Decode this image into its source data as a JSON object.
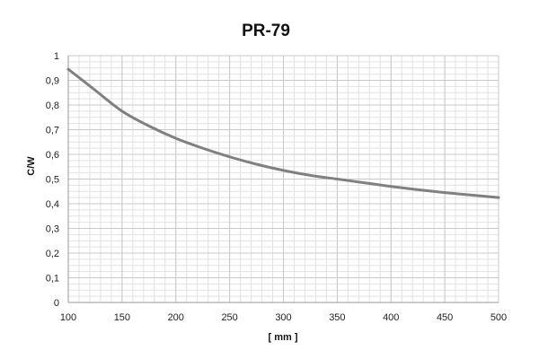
{
  "chart_data": {
    "type": "line",
    "title": "PR-79",
    "xlabel": "[ mm ]",
    "ylabel": "C/W",
    "xlim": [
      100,
      500
    ],
    "ylim": [
      0,
      1
    ],
    "x_ticks": [
      "100",
      "150",
      "200",
      "250",
      "300",
      "350",
      "400",
      "450",
      "500"
    ],
    "y_ticks": [
      "0",
      "0,1",
      "0,2",
      "0,3",
      "0,4",
      "0,5",
      "0,6",
      "0,7",
      "0,8",
      "0,9",
      "1"
    ],
    "grid": true,
    "series": [
      {
        "color": "#808080",
        "x": [
          100,
          125,
          150,
          175,
          200,
          225,
          250,
          275,
          300,
          325,
          350,
          375,
          400,
          425,
          450,
          475,
          500
        ],
        "values": [
          0.945,
          0.86,
          0.775,
          0.715,
          0.665,
          0.625,
          0.59,
          0.56,
          0.535,
          0.515,
          0.5,
          0.485,
          0.47,
          0.457,
          0.445,
          0.435,
          0.425
        ]
      }
    ]
  }
}
